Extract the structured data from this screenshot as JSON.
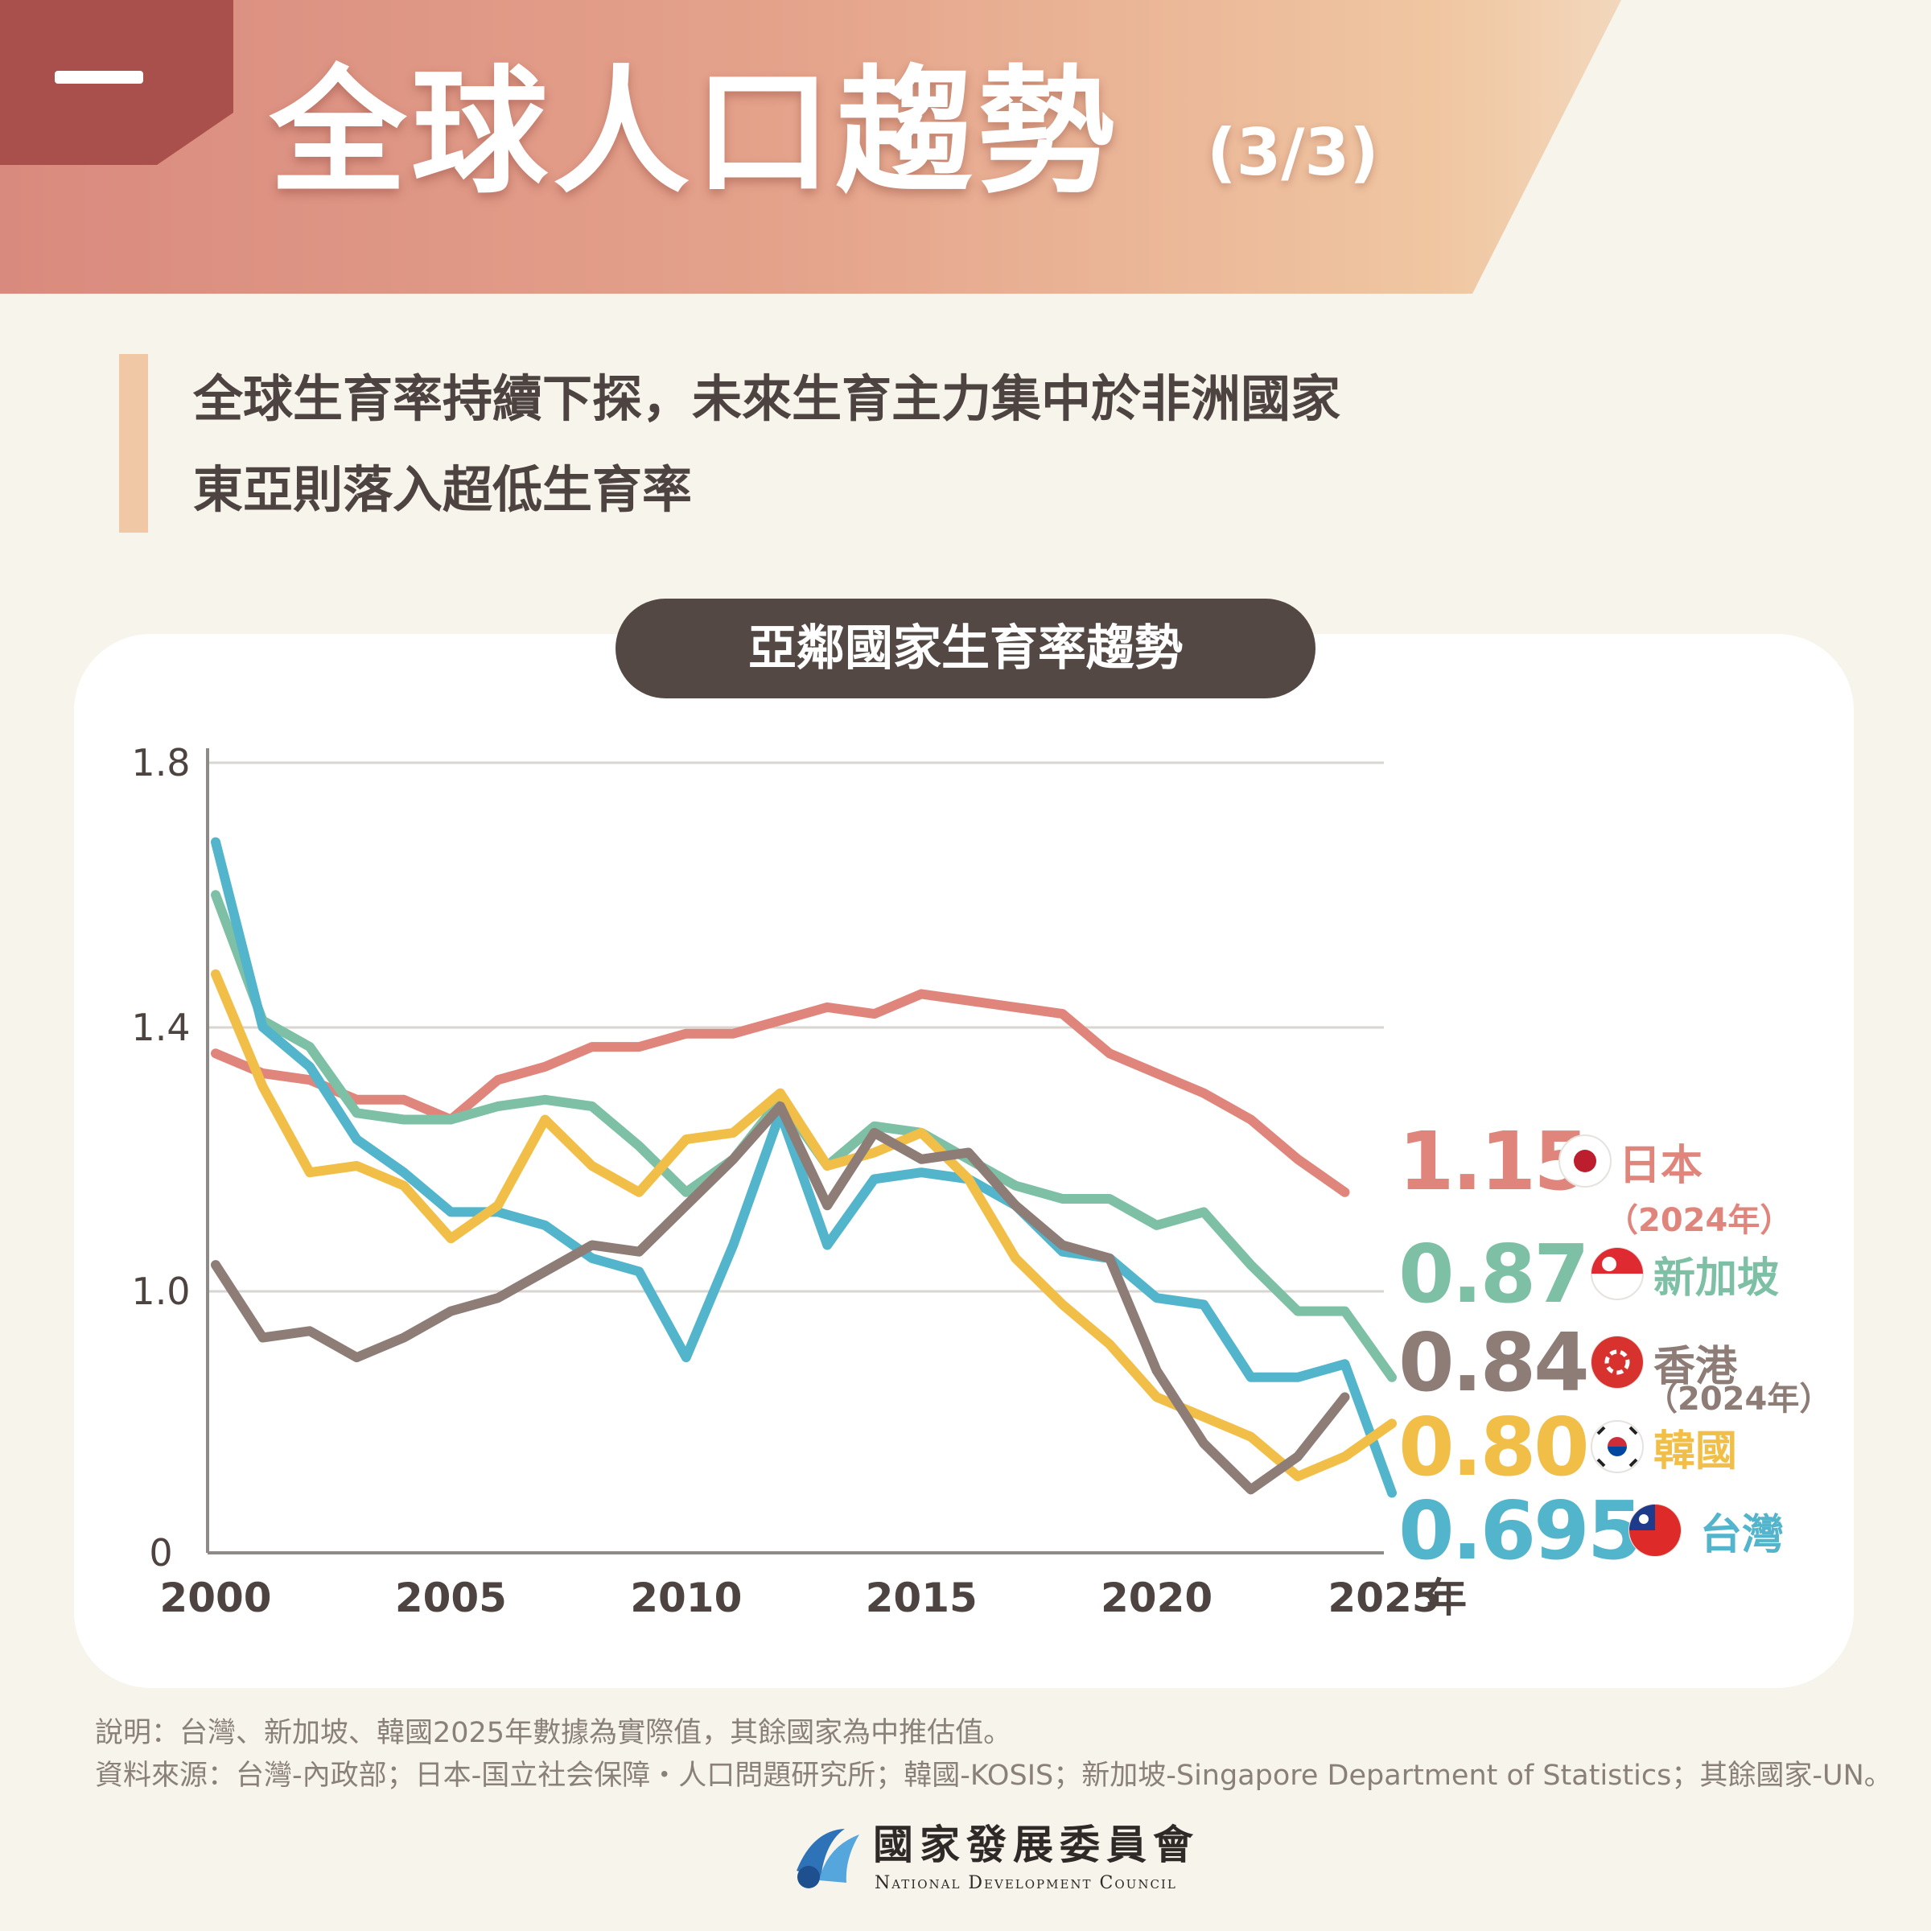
{
  "header": {
    "dash": "一",
    "title": "全球人口趨勢",
    "part": "(3/3)"
  },
  "subheadline": {
    "line1": "全球生育率持續下探，未來生育主力集中於非洲國家",
    "line2": "東亞則落入超低生育率"
  },
  "chart_title": "亞鄰國家生育率趨勢",
  "chart_data": {
    "type": "line",
    "title": "亞鄰國家生育率趨勢",
    "x_ticks": [
      "2000",
      "2005",
      "2010",
      "2015",
      "2020",
      "2025"
    ],
    "x_unit": "年",
    "y_ticks": [
      "0",
      "1.0",
      "1.4",
      "1.8"
    ],
    "xlim": [
      2000,
      2026
    ],
    "y_axis_note": "broken axis: 0 at base, then 0.6 to 1.8",
    "grid": "horizontal",
    "series": [
      {
        "name": "日本",
        "key": "japan",
        "color": "#e0857c",
        "end_label": "1.15",
        "note": "（2024年）",
        "x": [
          2000,
          2001,
          2002,
          2003,
          2004,
          2005,
          2006,
          2007,
          2008,
          2009,
          2010,
          2011,
          2012,
          2013,
          2014,
          2015,
          2016,
          2017,
          2018,
          2019,
          2020,
          2021,
          2022,
          2023,
          2024
        ],
        "values": [
          1.36,
          1.33,
          1.32,
          1.29,
          1.29,
          1.26,
          1.32,
          1.34,
          1.37,
          1.37,
          1.39,
          1.39,
          1.41,
          1.43,
          1.42,
          1.45,
          1.44,
          1.43,
          1.42,
          1.36,
          1.33,
          1.3,
          1.26,
          1.2,
          1.15
        ]
      },
      {
        "name": "新加坡",
        "key": "singapore",
        "color": "#7dc0a5",
        "end_label": "0.87",
        "x": [
          2000,
          2001,
          2002,
          2003,
          2004,
          2005,
          2006,
          2007,
          2008,
          2009,
          2010,
          2011,
          2012,
          2013,
          2014,
          2015,
          2016,
          2017,
          2018,
          2019,
          2020,
          2021,
          2022,
          2023,
          2024,
          2025
        ],
        "values": [
          1.6,
          1.41,
          1.37,
          1.27,
          1.26,
          1.26,
          1.28,
          1.29,
          1.28,
          1.22,
          1.15,
          1.2,
          1.29,
          1.19,
          1.25,
          1.24,
          1.2,
          1.16,
          1.14,
          1.14,
          1.1,
          1.12,
          1.04,
          0.97,
          0.97,
          0.87
        ]
      },
      {
        "name": "香港",
        "key": "hongkong",
        "color": "#8e7c77",
        "end_label": "0.84",
        "note": "（2024年）",
        "x": [
          2000,
          2001,
          2002,
          2003,
          2004,
          2005,
          2006,
          2007,
          2008,
          2009,
          2010,
          2011,
          2012,
          2013,
          2014,
          2015,
          2016,
          2017,
          2018,
          2019,
          2020,
          2021,
          2022,
          2023,
          2024
        ],
        "values": [
          1.04,
          0.93,
          0.94,
          0.9,
          0.93,
          0.97,
          0.99,
          1.03,
          1.07,
          1.06,
          1.13,
          1.2,
          1.28,
          1.13,
          1.24,
          1.2,
          1.21,
          1.13,
          1.07,
          1.05,
          0.88,
          0.77,
          0.7,
          0.75,
          0.84
        ]
      },
      {
        "name": "韓國",
        "key": "korea",
        "color": "#f1bf47",
        "end_label": "0.80",
        "x": [
          2000,
          2001,
          2002,
          2003,
          2004,
          2005,
          2006,
          2007,
          2008,
          2009,
          2010,
          2011,
          2012,
          2013,
          2014,
          2015,
          2016,
          2017,
          2018,
          2019,
          2020,
          2021,
          2022,
          2023,
          2024,
          2025
        ],
        "values": [
          1.48,
          1.31,
          1.18,
          1.19,
          1.16,
          1.08,
          1.13,
          1.26,
          1.19,
          1.15,
          1.23,
          1.24,
          1.3,
          1.19,
          1.21,
          1.24,
          1.17,
          1.05,
          0.98,
          0.92,
          0.84,
          0.81,
          0.78,
          0.72,
          0.75,
          0.8
        ]
      },
      {
        "name": "台灣",
        "key": "taiwan",
        "color": "#52b5cb",
        "end_label": "0.695",
        "x": [
          2000,
          2001,
          2002,
          2003,
          2004,
          2005,
          2006,
          2007,
          2008,
          2009,
          2010,
          2011,
          2012,
          2013,
          2014,
          2015,
          2016,
          2017,
          2018,
          2019,
          2020,
          2021,
          2022,
          2023,
          2024,
          2025
        ],
        "values": [
          1.68,
          1.4,
          1.34,
          1.23,
          1.18,
          1.12,
          1.12,
          1.1,
          1.05,
          1.03,
          0.9,
          1.07,
          1.27,
          1.07,
          1.17,
          1.18,
          1.17,
          1.13,
          1.06,
          1.05,
          0.99,
          0.98,
          0.87,
          0.87,
          0.89,
          0.695
        ]
      }
    ]
  },
  "notes": {
    "line1": "說明：台灣、新加坡、韓國2025年數據為實際值，其餘國家為中推估值。",
    "line2": "資料來源：台灣-內政部；日本-国立社会保障・人口問題研究所；韓國-KOSIS；新加坡-Singapore Department of Statistics；其餘國家-UN。"
  },
  "footer": {
    "org_name": "國家發展委員會",
    "org_name_en": "National Development Council"
  },
  "icons": {
    "flag_japan": "japan-flag-icon",
    "flag_singapore": "singapore-flag-icon",
    "flag_hongkong": "hongkong-flag-icon",
    "flag_korea": "korea-flag-icon",
    "flag_taiwan": "taiwan-flag-icon",
    "logo": "ndc-logo-icon"
  }
}
